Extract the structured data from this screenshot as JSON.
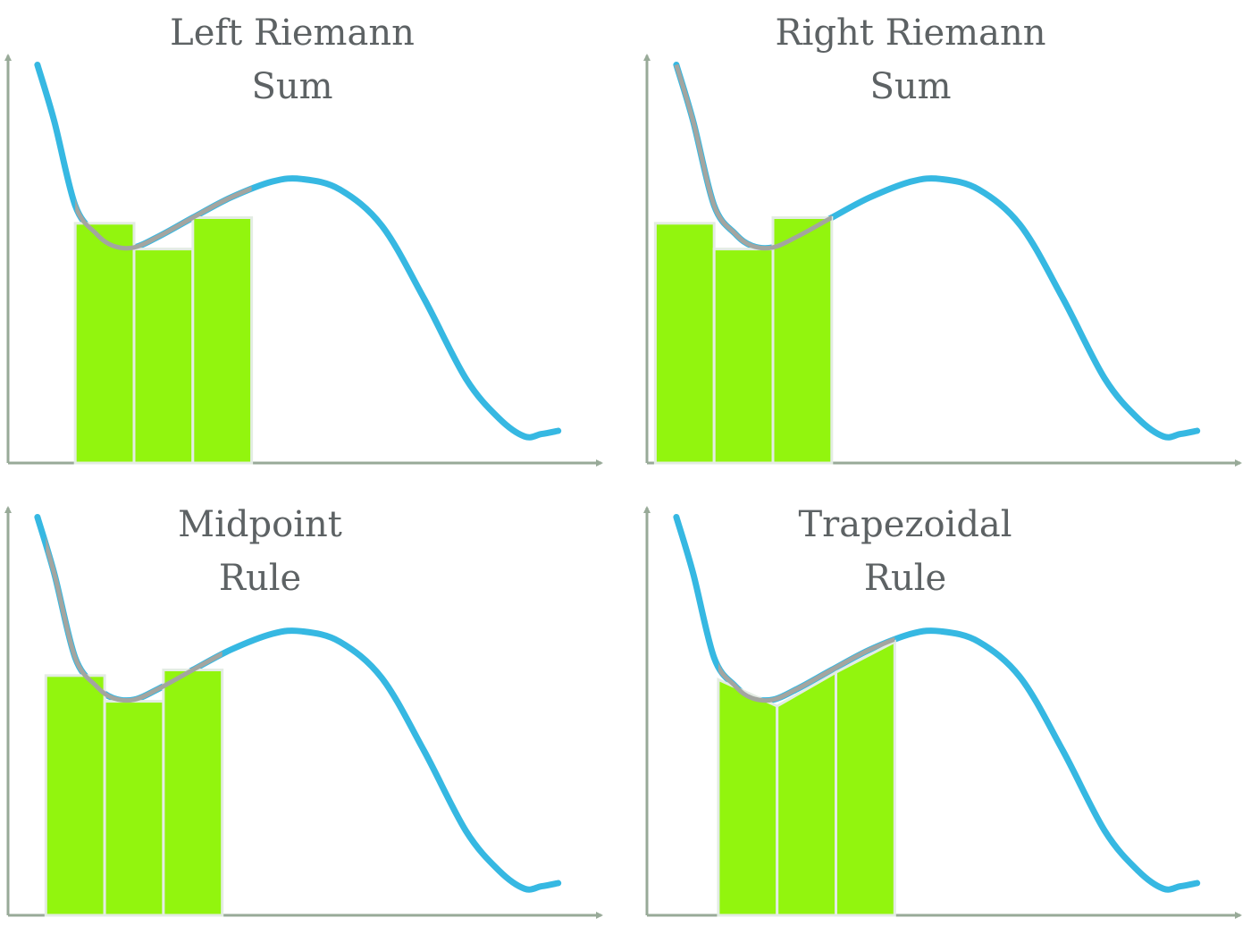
{
  "colors": {
    "curve": "#36b8e2",
    "bar_fill": "#92f50e",
    "bar_stroke": "#e3ece3",
    "curve_overlap": "#a3a5a0",
    "axis": "#98aa98",
    "title": "#5d6264"
  },
  "panels": [
    {
      "id": "left",
      "title_lines": [
        "Left Riemann",
        "Sum"
      ],
      "kind": "rect",
      "bars": [
        {
          "x0": 0.75,
          "x1": 1.45,
          "h": 2.98
        },
        {
          "x0": 1.45,
          "x1": 2.15,
          "h": 2.66
        },
        {
          "x0": 2.15,
          "x1": 2.85,
          "h": 3.05
        }
      ]
    },
    {
      "id": "right",
      "title_lines": [
        "Right Riemann",
        "Sum"
      ],
      "kind": "rect",
      "bars": [
        {
          "x0": 0.05,
          "x1": 0.75,
          "h": 2.98
        },
        {
          "x0": 0.75,
          "x1": 1.45,
          "h": 2.66
        },
        {
          "x0": 1.45,
          "x1": 2.15,
          "h": 3.05
        }
      ]
    },
    {
      "id": "midpoint",
      "title_lines": [
        "Midpoint",
        "Rule"
      ],
      "kind": "rect",
      "bars": [
        {
          "x0": 0.4,
          "x1": 1.1,
          "h": 2.98
        },
        {
          "x0": 1.1,
          "x1": 1.8,
          "h": 2.66
        },
        {
          "x0": 1.8,
          "x1": 2.5,
          "h": 3.05
        }
      ]
    },
    {
      "id": "trapezoid",
      "title_lines": [
        "Trapezoidal",
        "Rule"
      ],
      "kind": "trap",
      "bars": [
        {
          "x0": 0.8,
          "x1": 1.5,
          "h0": 2.93,
          "h1": 2.6
        },
        {
          "x0": 1.5,
          "x1": 2.2,
          "h0": 2.6,
          "h1": 3.02
        },
        {
          "x0": 2.2,
          "x1": 2.9,
          "h0": 3.02,
          "h1": 3.4
        }
      ]
    }
  ],
  "curve": {
    "x_range": [
      0.3,
      6.5
    ],
    "points": [
      [
        0.3,
        4.95
      ],
      [
        0.5,
        4.25
      ],
      [
        0.75,
        3.2
      ],
      [
        1.0,
        2.85
      ],
      [
        1.2,
        2.7
      ],
      [
        1.45,
        2.68
      ],
      [
        1.75,
        2.82
      ],
      [
        2.15,
        3.05
      ],
      [
        2.6,
        3.3
      ],
      [
        3.1,
        3.5
      ],
      [
        3.45,
        3.53
      ],
      [
        3.9,
        3.4
      ],
      [
        4.4,
        2.95
      ],
      [
        4.9,
        2.05
      ],
      [
        5.4,
        1.05
      ],
      [
        5.8,
        0.55
      ],
      [
        6.1,
        0.33
      ],
      [
        6.3,
        0.36
      ],
      [
        6.5,
        0.4
      ]
    ]
  },
  "axes": {
    "x_max": 7.0,
    "y_max": 5.0
  }
}
